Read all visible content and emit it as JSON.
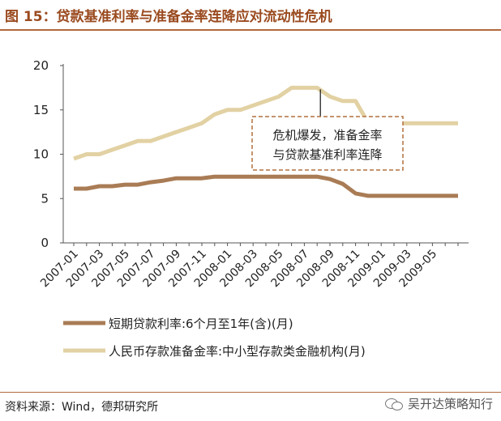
{
  "header": {
    "title": "图 15：贷款基准利率与准备金率连降应对流动性危机"
  },
  "footer": {
    "source": "资料来源：Wind，德邦研究所",
    "watermark": "吴开达策略知行"
  },
  "colors": {
    "loan_rate": "#a97c55",
    "reserve_ratio": "#e2d1a3",
    "accent": "#9a4a1f",
    "annotation_border": "#b2703f"
  },
  "chart_data": {
    "type": "line",
    "title": "",
    "xlabel": "",
    "ylabel": "",
    "ylim": [
      0,
      20
    ],
    "yticks": [
      0,
      5,
      10,
      15,
      20
    ],
    "x": [
      "2007-01",
      "2007-02",
      "2007-03",
      "2007-04",
      "2007-05",
      "2007-06",
      "2007-07",
      "2007-08",
      "2007-09",
      "2007-10",
      "2007-11",
      "2007-12",
      "2008-01",
      "2008-02",
      "2008-03",
      "2008-04",
      "2008-05",
      "2008-06",
      "2008-07",
      "2008-08",
      "2008-09",
      "2008-10",
      "2008-11",
      "2008-12",
      "2009-01",
      "2009-02",
      "2009-03",
      "2009-04",
      "2009-05",
      "2009-06",
      "2009-07"
    ],
    "xticks": [
      "2007-01",
      "2007-03",
      "2007-05",
      "2007-07",
      "2007-09",
      "2007-11",
      "2008-01",
      "2008-03",
      "2008-05",
      "2008-07",
      "2008-09",
      "2008-11",
      "2009-01",
      "2009-03",
      "2009-05"
    ],
    "grid": false,
    "legend_position": "bottom",
    "series": [
      {
        "name": "短期贷款利率:6个月至1年(含)(月)",
        "values": [
          6.12,
          6.12,
          6.39,
          6.39,
          6.57,
          6.57,
          6.84,
          7.02,
          7.29,
          7.29,
          7.29,
          7.47,
          7.47,
          7.47,
          7.47,
          7.47,
          7.47,
          7.47,
          7.47,
          7.47,
          7.2,
          6.66,
          5.58,
          5.31,
          5.31,
          5.31,
          5.31,
          5.31,
          5.31,
          5.31,
          5.31
        ]
      },
      {
        "name": "人民币存款准备金率:中小型存款类金融机构(月)",
        "values": [
          9.5,
          10.0,
          10.0,
          10.5,
          11.0,
          11.5,
          11.5,
          12.0,
          12.5,
          13.0,
          13.5,
          14.5,
          15.0,
          15.0,
          15.5,
          16.0,
          16.5,
          17.5,
          17.5,
          17.5,
          16.5,
          16.0,
          16.0,
          13.5,
          13.5,
          13.5,
          13.5,
          13.5,
          13.5,
          13.5,
          13.5
        ]
      }
    ],
    "annotation": {
      "line1": "危机爆发，准备金率",
      "line2": "与贷款基准利率连降",
      "points_to": "2008-09"
    }
  }
}
